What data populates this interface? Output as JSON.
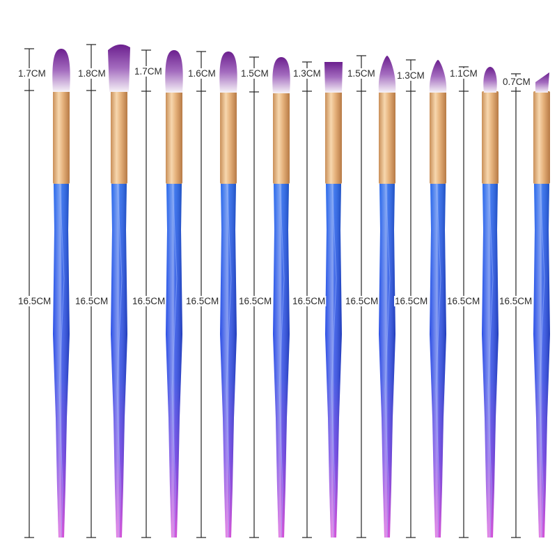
{
  "product": "Eye makeup brush set",
  "brush_count": 10,
  "colors": {
    "handle_top": "#1f5fe6",
    "handle_mid": "#3a45e0",
    "handle_bottom": "#c23ad8",
    "ferrule": "#e2b07c",
    "ferrule_light": "#f6d6ad",
    "bristle_tip": "#7a2a9a",
    "bristle_base": "#f4f0f6",
    "measure_line": "#222222"
  },
  "brushes": [
    {
      "id": 1,
      "head_shape": "round",
      "head_length": "1.7CM",
      "handle_length": "16.5CM"
    },
    {
      "id": 2,
      "head_shape": "fan",
      "head_length": "1.8CM",
      "handle_length": "16.5CM"
    },
    {
      "id": 3,
      "head_shape": "round",
      "head_length": "1.7CM",
      "handle_length": "16.5CM"
    },
    {
      "id": 4,
      "head_shape": "round",
      "head_length": "1.6CM",
      "handle_length": "16.5CM"
    },
    {
      "id": 5,
      "head_shape": "oval",
      "head_length": "1.5CM",
      "handle_length": "16.5CM"
    },
    {
      "id": 6,
      "head_shape": "flat",
      "head_length": "1.3CM",
      "handle_length": "16.5CM"
    },
    {
      "id": 7,
      "head_shape": "pointed",
      "head_length": "1.5CM",
      "handle_length": "16.5CM"
    },
    {
      "id": 8,
      "head_shape": "pointed",
      "head_length": "1.3CM",
      "handle_length": "16.5CM"
    },
    {
      "id": 9,
      "head_shape": "small",
      "head_length": "1.1CM",
      "handle_length": "16.5CM"
    },
    {
      "id": 10,
      "head_shape": "angled",
      "head_length": "0.7CM",
      "handle_length": "16.5CM"
    }
  ]
}
